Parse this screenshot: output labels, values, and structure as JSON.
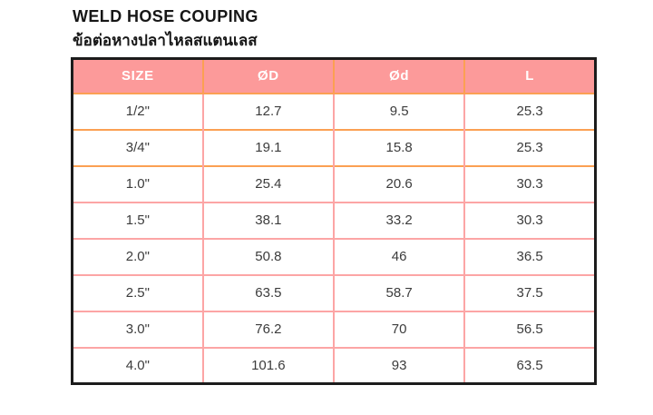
{
  "page": {
    "title": "WELD HOSE COUPING",
    "subtitle_thai": "ข้อต่อหางปลาไหลสแตนเลส"
  },
  "table": {
    "columns": [
      "SIZE",
      "ØD",
      "Ød",
      "L"
    ],
    "rows": [
      [
        "1/2\"",
        "12.7",
        "9.5",
        "25.3"
      ],
      [
        "3/4\"",
        "19.1",
        "15.8",
        "25.3"
      ],
      [
        "1.0\"",
        "25.4",
        "20.6",
        "30.3"
      ],
      [
        "1.5\"",
        "38.1",
        "33.2",
        "30.3"
      ],
      [
        "2.0\"",
        "50.8",
        "46",
        "36.5"
      ],
      [
        "2.5\"",
        "63.5",
        "58.7",
        "37.5"
      ],
      [
        "3.0\"",
        "76.2",
        "70",
        "56.5"
      ],
      [
        "4.0\"",
        "101.6",
        "93",
        "63.5"
      ]
    ]
  },
  "colors": {
    "header_bg": "#FC9A9A",
    "header_text": "#FFFFFF",
    "border_orange": "#FBA053",
    "border_pink": "#FCA5A5",
    "outer_border": "#1C1C1C",
    "title_color": "#161616",
    "data_color": "#3C3C3C"
  }
}
